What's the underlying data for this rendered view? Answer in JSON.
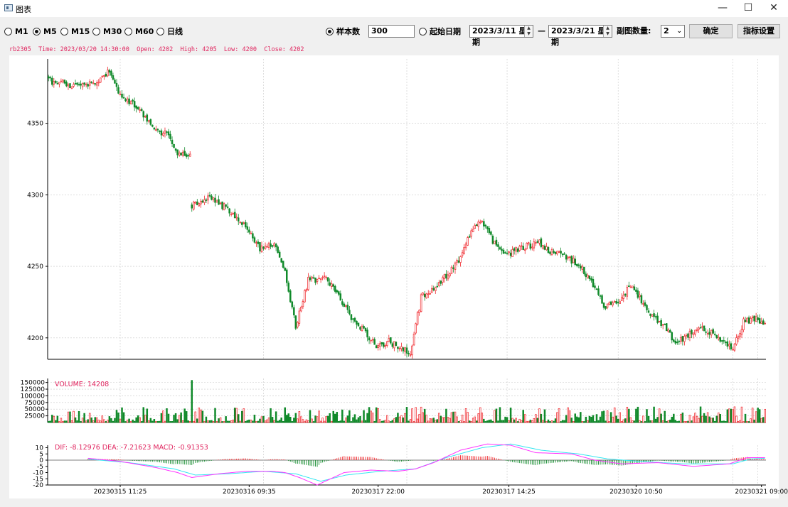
{
  "window": {
    "title": "图表",
    "minimize": "—",
    "maximize": "☐",
    "close": "✕",
    "icon": "chart-window-icon"
  },
  "toolbar": {
    "periods": [
      {
        "label": "M1",
        "checked": false
      },
      {
        "label": "M5",
        "checked": true
      },
      {
        "label": "M15",
        "checked": false
      },
      {
        "label": "M30",
        "checked": false
      },
      {
        "label": "M60",
        "checked": false
      },
      {
        "label": "日线",
        "checked": false
      }
    ],
    "samples_label": "样本数",
    "samples_value": "300",
    "start_date_label": "起始日期",
    "date_from": "2023/3/11 星期",
    "date_sep": "—",
    "date_to": "2023/3/21 星期",
    "subchart_label": "副图数量:",
    "subchart_value": "2",
    "confirm_label": "确定",
    "indicator_label": "指标设置"
  },
  "info_line": "rb2305  Time: 2023/03/20 14:30:00  Open: 4202  High: 4205  Low: 4200  Close: 4202",
  "colors": {
    "up": "#f0282d",
    "down": "#118a2b",
    "dif": "#ff33ff",
    "dea": "#33e6f0",
    "label_red": "#e0245e",
    "grid": "#c8c8c8"
  },
  "chart_data": [
    {
      "type": "candlestick",
      "symbol": "rb2305",
      "ylim": [
        4185,
        4395
      ],
      "yticks": [
        4200,
        4250,
        4300,
        4350
      ],
      "grid": true,
      "close_keypoints": [
        [
          0,
          4380
        ],
        [
          15,
          4376
        ],
        [
          25,
          4378
        ],
        [
          33,
          4386
        ],
        [
          40,
          4370
        ],
        [
          50,
          4360
        ],
        [
          58,
          4348
        ],
        [
          66,
          4342
        ],
        [
          72,
          4330
        ],
        [
          78,
          4325
        ],
        [
          79,
          4326
        ],
        [
          80,
          4292
        ],
        [
          90,
          4298
        ],
        [
          100,
          4290
        ],
        [
          110,
          4277
        ],
        [
          118,
          4262
        ],
        [
          126,
          4265
        ],
        [
          132,
          4245
        ],
        [
          138,
          4208
        ],
        [
          145,
          4240
        ],
        [
          155,
          4242
        ],
        [
          162,
          4230
        ],
        [
          168,
          4216
        ],
        [
          175,
          4207
        ],
        [
          183,
          4194
        ],
        [
          190,
          4198
        ],
        [
          196,
          4192
        ],
        [
          202,
          4190
        ],
        [
          208,
          4228
        ],
        [
          215,
          4235
        ],
        [
          222,
          4243
        ],
        [
          230,
          4255
        ],
        [
          236,
          4275
        ],
        [
          242,
          4281
        ],
        [
          250,
          4264
        ],
        [
          258,
          4259
        ],
        [
          266,
          4264
        ],
        [
          274,
          4266
        ],
        [
          282,
          4259
        ],
        [
          290,
          4256
        ],
        [
          298,
          4249
        ],
        [
          304,
          4237
        ],
        [
          310,
          4222
        ],
        [
          318,
          4226
        ],
        [
          326,
          4238
        ],
        [
          334,
          4218
        ],
        [
          342,
          4211
        ],
        [
          350,
          4197
        ],
        [
          358,
          4203
        ],
        [
          366,
          4206
        ],
        [
          374,
          4201
        ],
        [
          382,
          4193
        ],
        [
          388,
          4211
        ],
        [
          394,
          4214
        ],
        [
          400,
          4210
        ]
      ]
    },
    {
      "type": "bar",
      "series": [
        {
          "name": "VOLUME",
          "last_value": 14208
        }
      ],
      "label_text": "VOLUME: 14208",
      "yticks": [
        25000,
        50000,
        75000,
        100000,
        125000,
        150000
      ],
      "ylim": [
        0,
        165000
      ]
    },
    {
      "type": "line",
      "indicator": "MACD",
      "label_text": "DIF: -8.12976   DEA: -7.21623   MACD: -0.91353",
      "yticks": [
        10,
        5,
        0,
        -5,
        -10,
        -15,
        -20
      ],
      "ylim": [
        -20,
        12
      ],
      "dif_keypoints": [
        [
          0,
          0
        ],
        [
          22,
          1.5
        ],
        [
          40,
          -1
        ],
        [
          60,
          -6
        ],
        [
          72,
          -10
        ],
        [
          80,
          -14
        ],
        [
          95,
          -11
        ],
        [
          110,
          -9
        ],
        [
          125,
          -9
        ],
        [
          132,
          -10
        ],
        [
          140,
          -14
        ],
        [
          150,
          -20
        ],
        [
          165,
          -10
        ],
        [
          180,
          -8
        ],
        [
          195,
          -9
        ],
        [
          205,
          -7
        ],
        [
          215,
          -2
        ],
        [
          230,
          8
        ],
        [
          245,
          13
        ],
        [
          258,
          12
        ],
        [
          272,
          6
        ],
        [
          292,
          5
        ],
        [
          305,
          0
        ],
        [
          320,
          -3
        ],
        [
          340,
          -2
        ],
        [
          360,
          -5
        ],
        [
          380,
          -3
        ],
        [
          390,
          2
        ],
        [
          400,
          2
        ]
      ],
      "dea_keypoints": [
        [
          0,
          0
        ],
        [
          22,
          0.8
        ],
        [
          45,
          -2
        ],
        [
          70,
          -7
        ],
        [
          82,
          -12
        ],
        [
          100,
          -11
        ],
        [
          120,
          -9
        ],
        [
          138,
          -11
        ],
        [
          152,
          -17
        ],
        [
          166,
          -12
        ],
        [
          185,
          -9
        ],
        [
          205,
          -7
        ],
        [
          222,
          2
        ],
        [
          242,
          10
        ],
        [
          258,
          13
        ],
        [
          275,
          8
        ],
        [
          296,
          5
        ],
        [
          312,
          1
        ],
        [
          330,
          -1
        ],
        [
          355,
          -3
        ],
        [
          382,
          -3
        ],
        [
          392,
          1
        ],
        [
          400,
          1.5
        ]
      ],
      "x_labels": [
        "20230315 11:25",
        "20230316 09:35",
        "20230317 22:00",
        "20230317 14:25",
        "20230320 10:50",
        "20230321 09:00"
      ]
    }
  ]
}
